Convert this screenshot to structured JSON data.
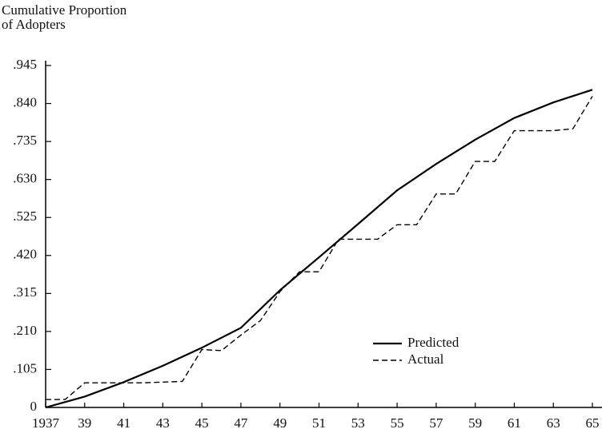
{
  "chart_data": {
    "type": "line",
    "ylabel_lines": [
      "Cumulative Proportion",
      "of Adopters"
    ],
    "xlim": [
      1937,
      1965
    ],
    "xticks": [
      1937,
      {
        "value": 1939,
        "label": "39"
      },
      {
        "value": 1941,
        "label": "41"
      },
      {
        "value": 1943,
        "label": "43"
      },
      {
        "value": 1945,
        "label": "45"
      },
      {
        "value": 1947,
        "label": "47"
      },
      {
        "value": 1949,
        "label": "49"
      },
      {
        "value": 1951,
        "label": "51"
      },
      {
        "value": 1953,
        "label": "53"
      },
      {
        "value": 1955,
        "label": "55"
      },
      {
        "value": 1957,
        "label": "57"
      },
      {
        "value": 1959,
        "label": "59"
      },
      {
        "value": 1961,
        "label": "61"
      },
      {
        "value": 1963,
        "label": "63"
      },
      {
        "value": 1965,
        "label": "65"
      }
    ],
    "ylim": [
      0,
      0.945
    ],
    "yticks": [
      0,
      {
        "value": 0.105,
        "label": ".105"
      },
      {
        "value": 0.21,
        "label": ".210"
      },
      {
        "value": 0.315,
        "label": ".315"
      },
      {
        "value": 0.42,
        "label": ".420"
      },
      {
        "value": 0.525,
        "label": ".525"
      },
      {
        "value": 0.63,
        "label": ".630"
      },
      {
        "value": 0.735,
        "label": ".735"
      },
      {
        "value": 0.84,
        "label": ".840"
      },
      {
        "value": 0.945,
        "label": ".945"
      }
    ],
    "series": [
      {
        "name": "Predicted",
        "color": "#000000",
        "dash": false,
        "x": [
          1937,
          1939,
          1941,
          1943,
          1945,
          1947,
          1949,
          1951,
          1953,
          1955,
          1957,
          1959,
          1961,
          1963,
          1965
        ],
        "values": [
          0,
          0.03,
          0.07,
          0.115,
          0.165,
          0.22,
          0.324,
          0.415,
          0.507,
          0.6,
          0.673,
          0.74,
          0.8,
          0.843,
          0.878
        ]
      },
      {
        "name": "Actual",
        "color": "#000000",
        "dash": true,
        "x": [
          1937,
          1938,
          1939,
          1940,
          1941,
          1942,
          1943,
          1944,
          1945,
          1946,
          1947,
          1948,
          1949,
          1950,
          1951,
          1952,
          1953,
          1954,
          1955,
          1956,
          1957,
          1958,
          1959,
          1960,
          1961,
          1962,
          1963,
          1964,
          1965
        ],
        "values": [
          0.022,
          0.022,
          0.068,
          0.068,
          0.068,
          0.068,
          0.07,
          0.072,
          0.16,
          0.157,
          0.2,
          0.24,
          0.32,
          0.375,
          0.375,
          0.465,
          0.465,
          0.465,
          0.505,
          0.505,
          0.59,
          0.59,
          0.68,
          0.68,
          0.765,
          0.765,
          0.765,
          0.77,
          0.86
        ]
      }
    ]
  }
}
